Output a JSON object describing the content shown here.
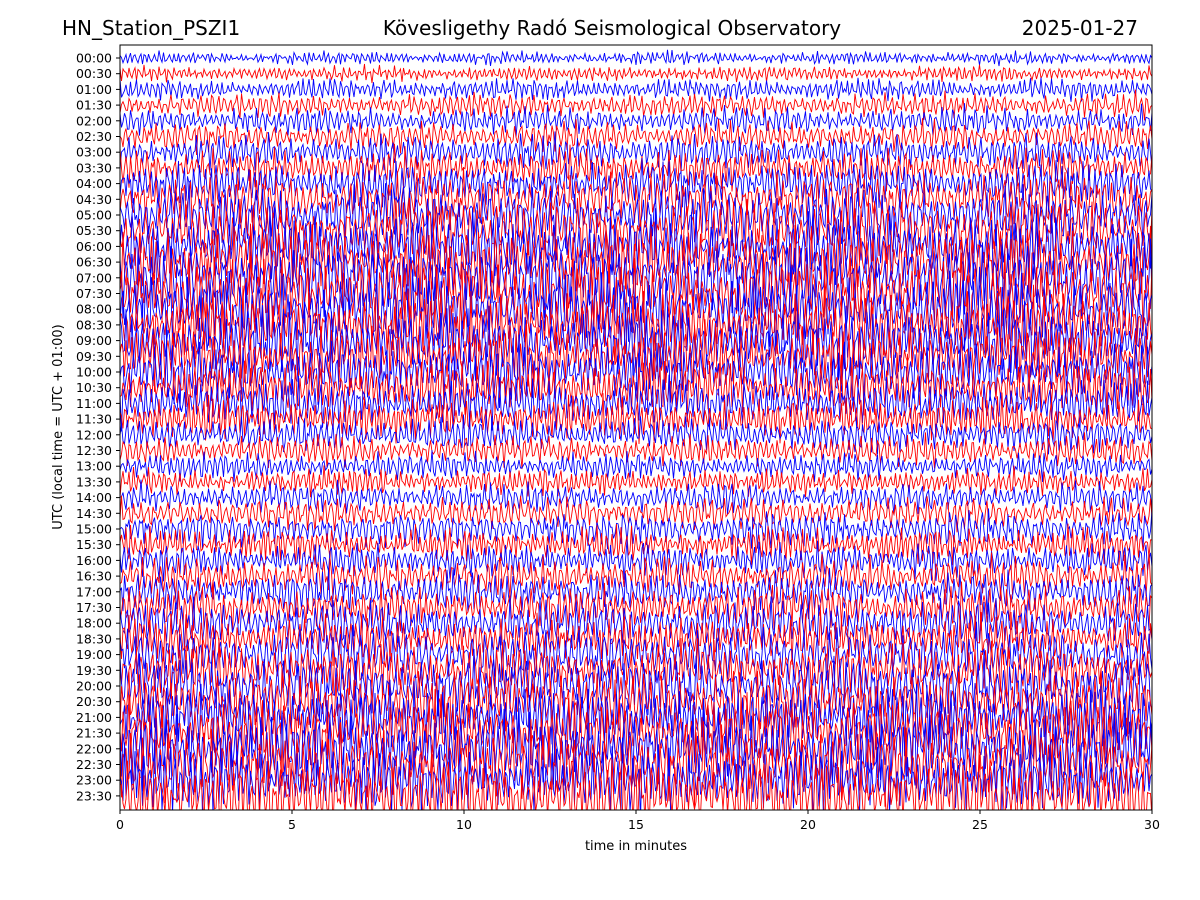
{
  "header": {
    "station": "HN_Station_PSZI1",
    "observatory": "Kövesligethy Radó Seismological Observatory",
    "date": "2025-01-27"
  },
  "chart_data": {
    "type": "line",
    "subtype": "helicorder",
    "title": "Kövesligethy Radó Seismological Observatory",
    "xlabel": "time in minutes",
    "ylabel": "UTC (local time = UTC + 01:00)",
    "xlim": [
      0,
      30
    ],
    "x_ticks": [
      0,
      5,
      10,
      15,
      20,
      25,
      30
    ],
    "row_labels": [
      "00:00",
      "00:30",
      "01:00",
      "01:30",
      "02:00",
      "02:30",
      "03:00",
      "03:30",
      "04:00",
      "04:30",
      "05:00",
      "05:30",
      "06:00",
      "06:30",
      "07:00",
      "07:30",
      "08:00",
      "08:30",
      "09:00",
      "09:30",
      "10:00",
      "10:30",
      "11:00",
      "11:30",
      "12:00",
      "12:30",
      "13:00",
      "13:30",
      "14:00",
      "14:30",
      "15:00",
      "15:30",
      "16:00",
      "16:30",
      "17:00",
      "17:30",
      "18:00",
      "18:30",
      "19:00",
      "19:30",
      "20:00",
      "20:30",
      "21:00",
      "21:30",
      "22:00",
      "22:30",
      "23:00",
      "23:30"
    ],
    "row_colors": [
      "#0000ff",
      "#ff0000"
    ],
    "row_amplitude": [
      0.5,
      0.6,
      0.8,
      0.9,
      1.0,
      1.1,
      1.3,
      1.5,
      1.7,
      1.9,
      2.1,
      2.3,
      2.5,
      2.6,
      2.7,
      2.7,
      2.6,
      2.5,
      2.4,
      2.3,
      2.2,
      2.0,
      1.8,
      1.6,
      1.3,
      1.1,
      1.0,
      1.0,
      1.1,
      1.2,
      1.3,
      1.3,
      1.3,
      1.4,
      1.5,
      1.6,
      1.7,
      1.8,
      1.9,
      2.0,
      2.2,
      2.3,
      2.4,
      2.5,
      2.6,
      2.6,
      2.6,
      2.6
    ],
    "grid": false,
    "legend": "none"
  }
}
